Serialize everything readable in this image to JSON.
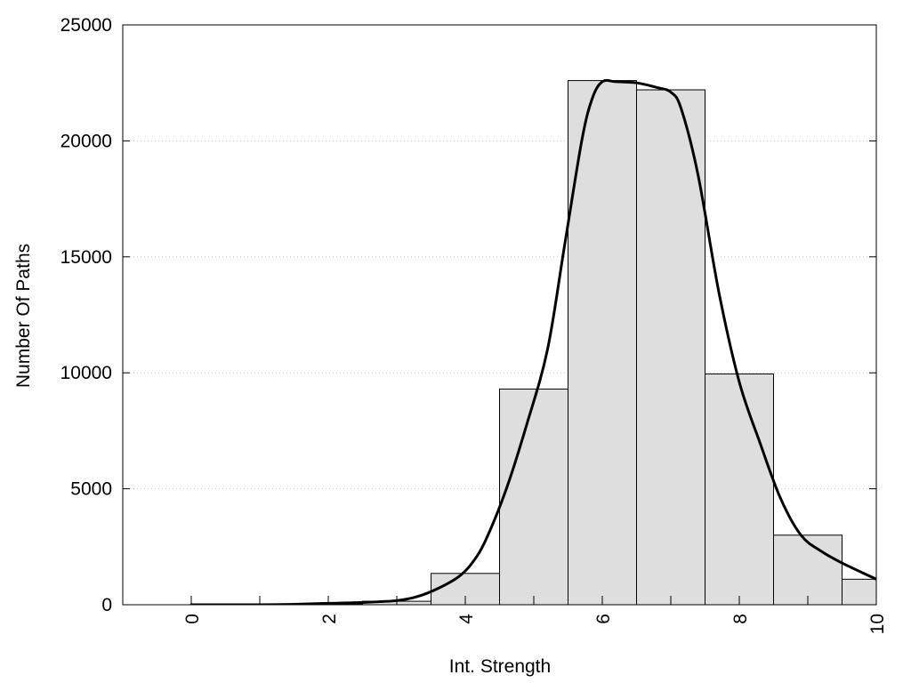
{
  "chart_data": {
    "type": "bar",
    "title": "",
    "xlabel": "Int. Strength",
    "ylabel": "Number Of Paths",
    "xlim": [
      -1,
      10
    ],
    "ylim": [
      0,
      25000
    ],
    "x_ticks": [
      0,
      2,
      4,
      6,
      8,
      10
    ],
    "x_tick_labels": [
      "0",
      "2",
      "4",
      "6",
      "8",
      "10"
    ],
    "y_ticks": [
      0,
      5000,
      10000,
      15000,
      20000,
      25000
    ],
    "y_tick_labels": [
      "0",
      "5000",
      "10000",
      "15000",
      "20000",
      "25000"
    ],
    "x_tick_label_rotation": -90,
    "grid": {
      "y": true,
      "x": false,
      "style": "dotted"
    },
    "legend": "none",
    "bin_width": 1,
    "bars": {
      "centers": [
        0,
        1,
        2,
        3,
        4,
        5,
        6,
        7,
        8,
        9,
        10
      ],
      "values": [
        0,
        0,
        40,
        150,
        1350,
        9300,
        22600,
        22200,
        9950,
        3000,
        1100
      ],
      "fill": "#dedede",
      "stroke": "#000000"
    },
    "curve": {
      "x": [
        0,
        1,
        1.5,
        2,
        2.5,
        3,
        3.3,
        3.6,
        3.9,
        4.1,
        4.3,
        4.6,
        4.9,
        5.2,
        5.45,
        5.7,
        5.85,
        6.0,
        6.2,
        6.5,
        6.8,
        7.0,
        7.15,
        7.4,
        7.7,
        8.0,
        8.3,
        8.6,
        8.9,
        9.2,
        9.5,
        10
      ],
      "y": [
        0,
        0,
        20,
        60,
        100,
        180,
        350,
        700,
        1200,
        1800,
        2800,
        5000,
        7800,
        11000,
        15500,
        20000,
        21800,
        22550,
        22550,
        22500,
        22300,
        22100,
        21400,
        18500,
        13500,
        9600,
        7000,
        4600,
        3000,
        2300,
        1800,
        1100
      ],
      "stroke": "#000000"
    }
  }
}
